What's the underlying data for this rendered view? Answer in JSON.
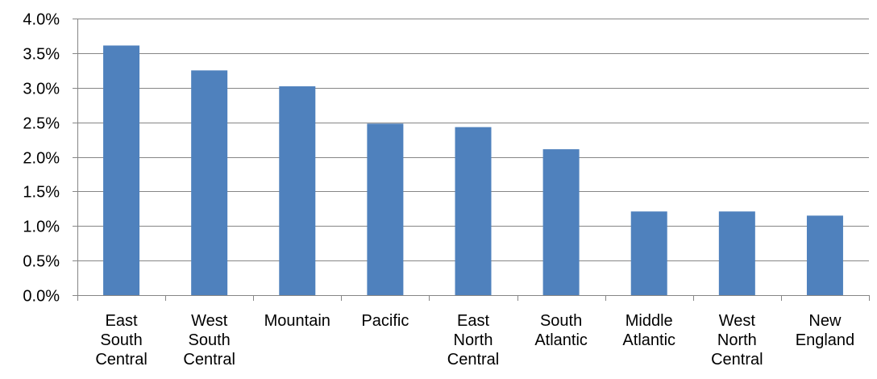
{
  "chart_data": {
    "type": "bar",
    "title": "",
    "xlabel": "",
    "ylabel": "",
    "categories": [
      [
        "East",
        "South",
        "Central"
      ],
      [
        "West",
        "South",
        "Central"
      ],
      [
        "Mountain"
      ],
      [
        "Pacific"
      ],
      [
        "East",
        "North",
        "Central"
      ],
      [
        "South",
        "Atlantic"
      ],
      [
        "Middle",
        "Atlantic"
      ],
      [
        "West",
        "North",
        "Central"
      ],
      [
        "New",
        "England"
      ]
    ],
    "values": [
      3.61,
      3.25,
      3.02,
      2.48,
      2.43,
      2.11,
      1.21,
      1.21,
      1.15
    ],
    "ylim": [
      0,
      4
    ],
    "yticks": [
      "0.0%",
      "0.5%",
      "1.0%",
      "1.5%",
      "2.0%",
      "2.5%",
      "3.0%",
      "3.5%",
      "4.0%"
    ],
    "grid": true,
    "legend": "none",
    "colors": {
      "bar": "#4f81bd",
      "grid": "#868686",
      "axis": "#868686"
    }
  }
}
